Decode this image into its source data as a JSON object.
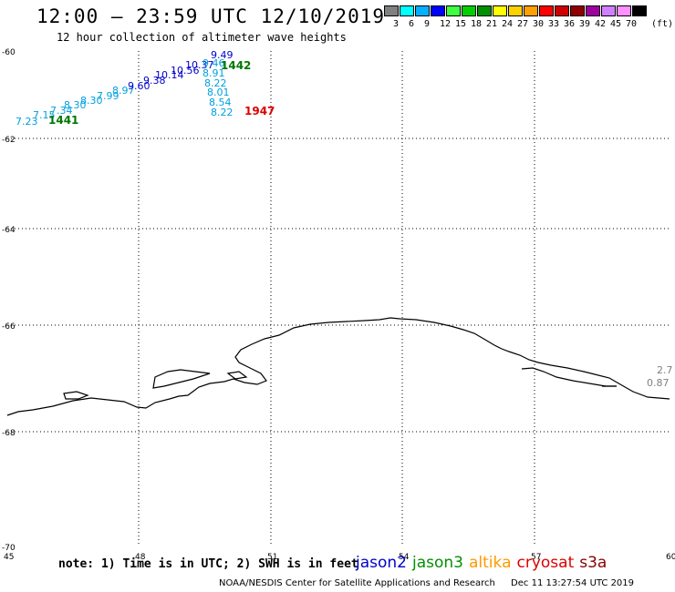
{
  "header": {
    "title": "12:00 – 23:59 UTC 12/10/2019",
    "subtitle": "12 hour collection of altimeter wave heights"
  },
  "color_scale": {
    "unit": "(ft)",
    "labels": [
      "3",
      "6",
      "9",
      "12",
      "15",
      "18",
      "21",
      "24",
      "27",
      "30",
      "33",
      "36",
      "39",
      "42",
      "45",
      "70"
    ],
    "colors": [
      "#808080",
      "#00ffff",
      "#00b0ff",
      "#0000ff",
      "#40ff40",
      "#00d000",
      "#009000",
      "#ffff00",
      "#ffd000",
      "#ffa000",
      "#ff0000",
      "#d00000",
      "#900000",
      "#a000a0",
      "#d080ff",
      "#ff90ff",
      "#000000"
    ]
  },
  "map": {
    "lat_labels": [
      "-60",
      "-62",
      "-64",
      "-66",
      "-68",
      "-70"
    ],
    "lon_labels": [
      "45",
      "48",
      "51",
      "54",
      "57",
      "60"
    ],
    "track_times": [
      {
        "text": "1441",
        "color": "#007700"
      },
      {
        "text": "1442",
        "color": "#007700"
      },
      {
        "text": "1947",
        "color": "#dd0000"
      }
    ],
    "wave_heights": [
      {
        "text": "7.23",
        "color": "#00a0e0"
      },
      {
        "text": "7.15",
        "color": "#00a0e0"
      },
      {
        "text": "7.34",
        "color": "#00a0e0"
      },
      {
        "text": "8.30",
        "color": "#00a0e0"
      },
      {
        "text": "8.30",
        "color": "#00a0e0"
      },
      {
        "text": "7.99",
        "color": "#00a0e0"
      },
      {
        "text": "8.97",
        "color": "#00a0e0"
      },
      {
        "text": "9.60",
        "color": "#0000cc"
      },
      {
        "text": "9.38",
        "color": "#0000cc"
      },
      {
        "text": "10.14",
        "color": "#0000cc"
      },
      {
        "text": "10.56",
        "color": "#0000cc"
      },
      {
        "text": "10.37",
        "color": "#0000cc"
      },
      {
        "text": "9.49",
        "color": "#0000cc"
      },
      {
        "text": "9.46",
        "color": "#00a0e0"
      },
      {
        "text": "8.91",
        "color": "#00a0e0"
      },
      {
        "text": "8.22",
        "color": "#00a0e0"
      },
      {
        "text": "8.01",
        "color": "#00a0e0"
      },
      {
        "text": "8.54",
        "color": "#00a0e0"
      },
      {
        "text": "8.22",
        "color": "#00a0e0"
      },
      {
        "text": "2.7",
        "color": "#808080"
      },
      {
        "text": "0.87",
        "color": "#808080"
      }
    ]
  },
  "note": "note: 1) Time is in UTC; 2) SWH is in feet",
  "satellites": [
    {
      "name": "jason2",
      "color": "#0000cc"
    },
    {
      "name": "jason3",
      "color": "#009000"
    },
    {
      "name": "altika",
      "color": "#ff9900"
    },
    {
      "name": "cryosat",
      "color": "#dd0000"
    },
    {
      "name": "s3a",
      "color": "#880000"
    }
  ],
  "footer": {
    "credit": "NOAA/NESDIS Center for Satellite Applications and Research",
    "timestamp": "Dec 11 13:27:54 UTC 2019"
  }
}
